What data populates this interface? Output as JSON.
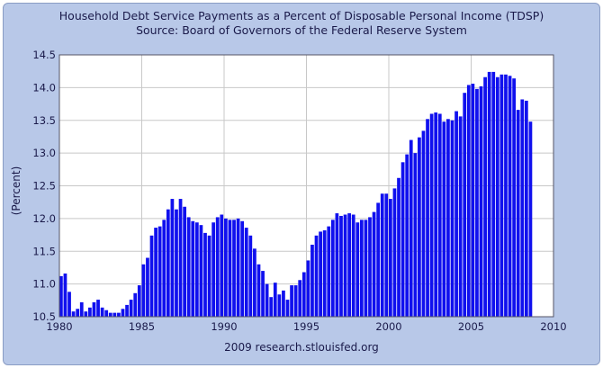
{
  "chart_data": {
    "type": "bar",
    "title": "Household Debt Service Payments as a Percent of Disposable Personal Income (TDSP)",
    "subtitle": "Source: Board of Governors of the Federal Reserve System",
    "xlabel": "",
    "ylabel": "(Percent)",
    "footer": "2009 research.stlouisfed.org",
    "xlim": [
      1980,
      2010
    ],
    "ylim": [
      10.5,
      14.5
    ],
    "xticks": [
      1980,
      1985,
      1990,
      1995,
      2000,
      2005,
      2010
    ],
    "xtick_labels": [
      "1980",
      "1985",
      "1990",
      "1995",
      "2000",
      "2005",
      "2010"
    ],
    "yticks": [
      10.5,
      11.0,
      11.5,
      12.0,
      12.5,
      13.0,
      13.5,
      14.0,
      14.5
    ],
    "ytick_labels": [
      "10.5",
      "11.0",
      "11.5",
      "12.0",
      "12.5",
      "13.0",
      "13.5",
      "14.0",
      "14.5"
    ],
    "grid": true,
    "bar_color": "#1010ee",
    "frequency": "quarterly",
    "start_quarter": "1980 Q1",
    "series": [
      {
        "name": "TDSP",
        "values": [
          11.12,
          11.16,
          10.88,
          10.58,
          10.62,
          10.72,
          10.58,
          10.64,
          10.72,
          10.76,
          10.64,
          10.6,
          10.56,
          10.56,
          10.56,
          10.62,
          10.68,
          10.76,
          10.86,
          10.98,
          11.3,
          11.4,
          11.74,
          11.86,
          11.88,
          11.98,
          12.14,
          12.3,
          12.14,
          12.3,
          12.18,
          12.02,
          11.96,
          11.94,
          11.9,
          11.78,
          11.74,
          11.94,
          12.02,
          12.06,
          12.0,
          11.98,
          11.98,
          12.0,
          11.96,
          11.86,
          11.74,
          11.54,
          11.3,
          11.2,
          11.0,
          10.8,
          11.02,
          10.84,
          10.9,
          10.76,
          10.98,
          10.98,
          11.06,
          11.18,
          11.36,
          11.6,
          11.74,
          11.8,
          11.82,
          11.88,
          11.98,
          12.08,
          12.04,
          12.06,
          12.08,
          12.06,
          11.94,
          11.98,
          11.98,
          12.02,
          12.1,
          12.24,
          12.38,
          12.38,
          12.3,
          12.46,
          12.62,
          12.86,
          12.98,
          13.2,
          13.0,
          13.24,
          13.34,
          13.52,
          13.6,
          13.62,
          13.6,
          13.48,
          13.52,
          13.5,
          13.64,
          13.56,
          13.92,
          14.04,
          14.06,
          13.98,
          14.02,
          14.16,
          14.24,
          14.24,
          14.16,
          14.2,
          14.2,
          14.18,
          14.14,
          13.66,
          13.82,
          13.8,
          13.48
        ]
      }
    ]
  }
}
